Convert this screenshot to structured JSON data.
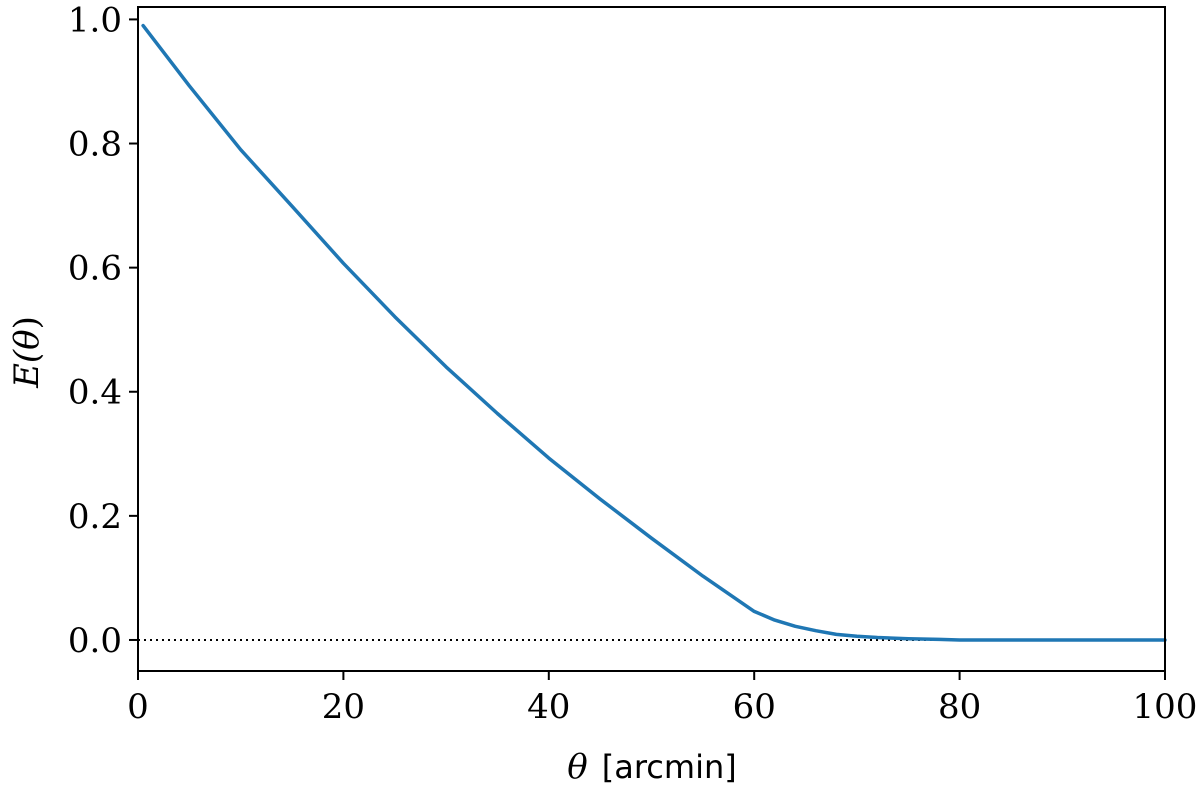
{
  "chart_data": {
    "type": "line",
    "title": "",
    "xlabel": {
      "symbol": "θ",
      "unit": "[arcmin]"
    },
    "ylabel": {
      "prefix": "E(",
      "symbol": "θ",
      "suffix": ")"
    },
    "xlim": [
      0,
      100
    ],
    "ylim": [
      -0.05,
      1.02
    ],
    "xticks": [
      0,
      20,
      40,
      60,
      80,
      100
    ],
    "xtick_labels": [
      "0",
      "20",
      "40",
      "60",
      "80",
      "100"
    ],
    "yticks": [
      0.0,
      0.2,
      0.4,
      0.6,
      0.8,
      1.0
    ],
    "ytick_labels": [
      "0.0",
      "0.2",
      "0.4",
      "0.6",
      "0.8",
      "1.0"
    ],
    "grid": false,
    "reference_line": {
      "y": 0.0,
      "style": "dotted",
      "color": "#000000"
    },
    "series": [
      {
        "color": "#1f77b4",
        "x": [
          0.5,
          5,
          10,
          15,
          20,
          25,
          30,
          35,
          40,
          45,
          50,
          55,
          60,
          62,
          64,
          66,
          68,
          70,
          72,
          75,
          78,
          80,
          85,
          90,
          95,
          100
        ],
        "y": [
          0.99,
          0.893,
          0.79,
          0.699,
          0.607,
          0.521,
          0.44,
          0.365,
          0.293,
          0.227,
          0.164,
          0.103,
          0.046,
          0.032,
          0.022,
          0.015,
          0.009,
          0.006,
          0.004,
          0.002,
          0.001,
          0.0,
          0.0,
          0.0,
          0.0,
          0.0
        ]
      }
    ]
  }
}
